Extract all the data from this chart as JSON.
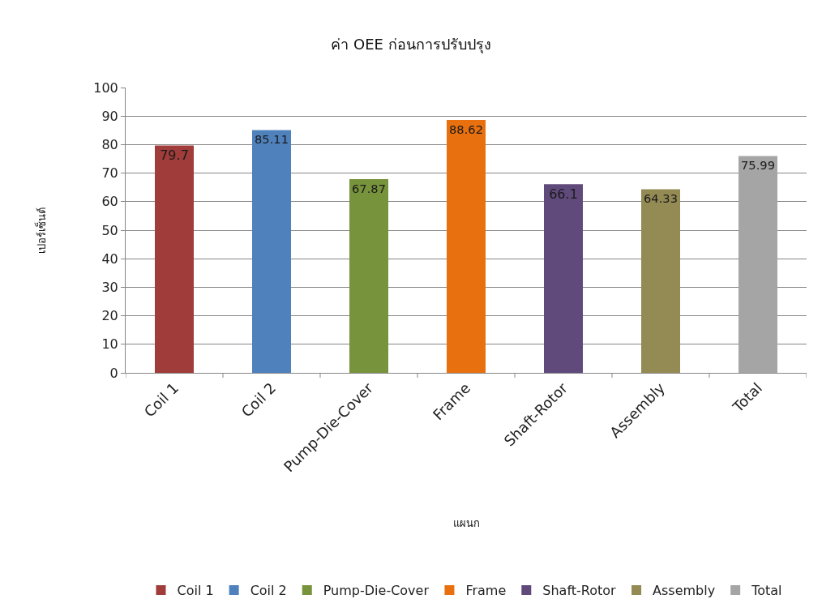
{
  "chart_data": {
    "type": "bar",
    "title": "ค่า OEE ก่อนการปรับปรุง",
    "xlabel": "แผนก",
    "ylabel": "เปอร์เซ็นต์",
    "categories": [
      "Coil 1",
      "Coil 2",
      "Pump-Die-Cover",
      "Frame",
      "Shaft-Rotor",
      "Assembly",
      "Total"
    ],
    "series": [
      {
        "name": "Coil 1",
        "color": "#a03c3a",
        "values": [
          79.7,
          null,
          null,
          null,
          null,
          null,
          null
        ]
      },
      {
        "name": "Coil 2",
        "color": "#4f81bd",
        "values": [
          null,
          85.11,
          null,
          null,
          null,
          null,
          null
        ]
      },
      {
        "name": "Pump-Die-Cover",
        "color": "#77933c",
        "values": [
          null,
          null,
          67.87,
          null,
          null,
          null,
          null
        ]
      },
      {
        "name": "Frame",
        "color": "#e8700e",
        "values": [
          null,
          null,
          null,
          88.62,
          null,
          null,
          null
        ]
      },
      {
        "name": "Shaft-Rotor",
        "color": "#604a7b",
        "values": [
          null,
          null,
          null,
          null,
          66.1,
          null,
          null
        ]
      },
      {
        "name": "Assembly",
        "color": "#948a54",
        "values": [
          null,
          null,
          null,
          null,
          null,
          64.33,
          null
        ]
      },
      {
        "name": "Total",
        "color": "#a5a5a5",
        "values": [
          null,
          null,
          null,
          null,
          null,
          null,
          75.99
        ]
      }
    ],
    "data_labels": true,
    "ylim": [
      0,
      100
    ],
    "yticks": [
      0,
      10,
      20,
      30,
      40,
      50,
      60,
      70,
      80,
      90,
      100
    ],
    "grid": "y",
    "legend": "bottom"
  }
}
